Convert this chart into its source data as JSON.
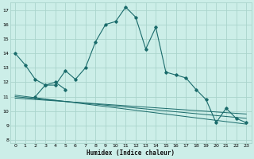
{
  "xlabel": "Humidex (Indice chaleur)",
  "bg_color": "#cceee8",
  "grid_color": "#aad4cc",
  "line_color": "#1a6b6b",
  "xlim": [
    -0.5,
    23.5
  ],
  "ylim": [
    7.8,
    17.5
  ],
  "yticks": [
    8,
    9,
    10,
    11,
    12,
    13,
    14,
    15,
    16,
    17
  ],
  "xticks": [
    0,
    1,
    2,
    3,
    4,
    5,
    6,
    7,
    8,
    9,
    10,
    11,
    12,
    13,
    14,
    15,
    16,
    17,
    18,
    19,
    20,
    21,
    22,
    23
  ],
  "main_series_x": [
    0,
    1,
    2,
    3,
    4,
    5,
    6,
    7,
    8,
    9,
    10,
    11,
    12,
    13,
    14,
    15,
    16,
    17,
    18,
    19,
    20,
    21,
    22,
    23
  ],
  "main_series_y": [
    14.0,
    13.2,
    12.2,
    11.8,
    11.8,
    12.8,
    12.2,
    13.0,
    14.8,
    16.0,
    16.2,
    17.2,
    16.5,
    14.3,
    15.8,
    12.7,
    12.5,
    12.3,
    11.5,
    10.8,
    9.2,
    10.2,
    9.5,
    9.2
  ],
  "series2_x": [
    2,
    3,
    4,
    5
  ],
  "series2_y": [
    11.0,
    11.8,
    12.0,
    11.5
  ],
  "trend_lines": [
    {
      "x": [
        0,
        23
      ],
      "y": [
        11.1,
        9.1
      ]
    },
    {
      "x": [
        0,
        23
      ],
      "y": [
        11.0,
        9.5
      ]
    },
    {
      "x": [
        0,
        23
      ],
      "y": [
        10.9,
        9.8
      ]
    }
  ]
}
